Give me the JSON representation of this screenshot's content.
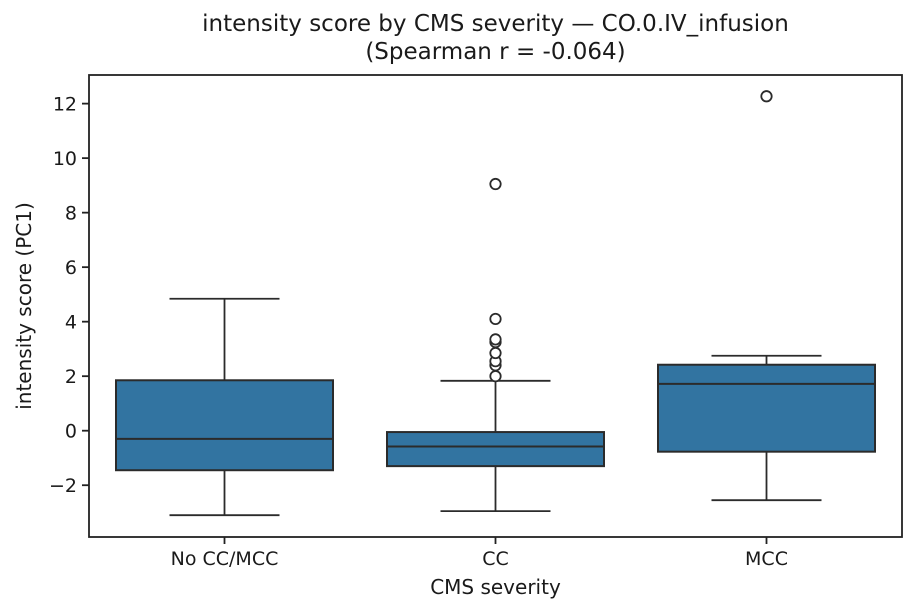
{
  "chart_data": {
    "type": "boxplot",
    "title": "intensity score by CMS severity — CO.0.IV_infusion",
    "subtitle": "(Spearman r = -0.064)",
    "xlabel": "CMS severity",
    "ylabel": "intensity score (PC1)",
    "categories": [
      "No CC/MCC",
      "CC",
      "MCC"
    ],
    "yticks": [
      -2,
      0,
      2,
      4,
      6,
      8,
      10,
      12
    ],
    "ylim": [
      -3.9,
      13.05
    ],
    "grid": false,
    "legend": null,
    "colors": {
      "box_fill": "#3274a1",
      "line": "#2b2b2b",
      "spine": "#222222",
      "text": "#1a1a1a"
    },
    "boxes": [
      {
        "category": "No CC/MCC",
        "whisker_low": -3.1,
        "q1": -1.45,
        "median": -0.3,
        "q3": 1.85,
        "whisker_high": 4.84,
        "outliers": []
      },
      {
        "category": "CC",
        "whisker_low": -2.95,
        "q1": -1.3,
        "median": -0.58,
        "q3": -0.05,
        "whisker_high": 1.83,
        "outliers": [
          2.0,
          2.4,
          2.55,
          2.85,
          3.25,
          3.35,
          4.1,
          9.05
        ]
      },
      {
        "category": "MCC",
        "whisker_low": -2.55,
        "q1": -0.77,
        "median": 1.72,
        "q3": 2.42,
        "whisker_high": 2.75,
        "outliers": [
          12.27
        ]
      }
    ]
  }
}
